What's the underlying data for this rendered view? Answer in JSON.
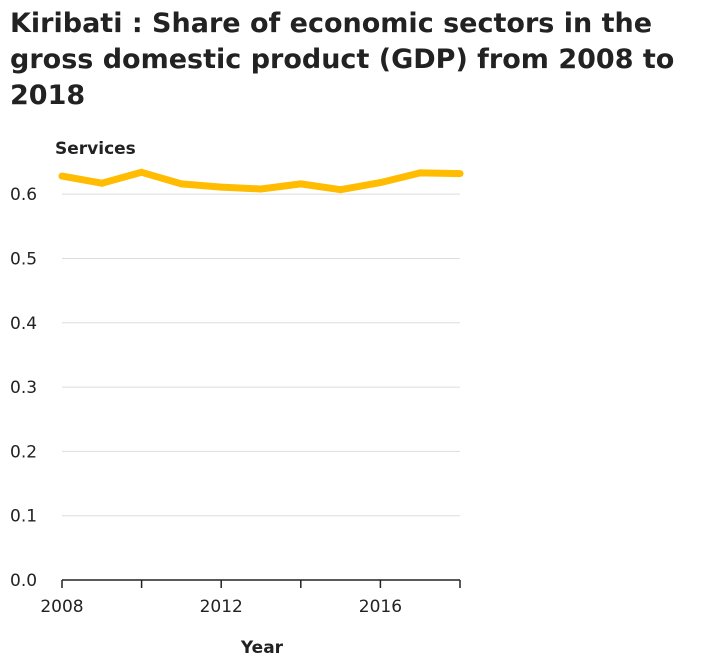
{
  "chart_data": {
    "type": "line",
    "title": "Kiribati : Share of economic sectors in the gross domestic product (GDP) from 2008 to 2018",
    "ylabel": "Services",
    "xlabel": "Year",
    "x": [
      2008,
      2009,
      2010,
      2011,
      2012,
      2013,
      2014,
      2015,
      2016,
      2017,
      2018
    ],
    "series": [
      {
        "name": "Services",
        "values": [
          0.628,
          0.617,
          0.634,
          0.616,
          0.611,
          0.608,
          0.616,
          0.607,
          0.618,
          0.633,
          0.632
        ],
        "color": "#ffbc00"
      }
    ],
    "xlim": [
      2008,
      2018
    ],
    "ylim": [
      0.0,
      0.65
    ],
    "y_ticks": [
      0.0,
      0.1,
      0.2,
      0.3,
      0.4,
      0.5,
      0.6
    ],
    "y_tick_labels": [
      "0.0",
      "0.1",
      "0.2",
      "0.3",
      "0.4",
      "0.5",
      "0.6"
    ],
    "x_ticks": [
      2008,
      2010,
      2012,
      2014,
      2016,
      2018
    ],
    "x_tick_labels": [
      "2008",
      "2012",
      "2016"
    ],
    "x_tick_label_values": [
      2008,
      2012,
      2016
    ],
    "grid": true,
    "legend": "none",
    "colors": {
      "line": "#ffbc00",
      "grid": "#dddddd",
      "axis": "#222222",
      "text": "#222222"
    }
  }
}
